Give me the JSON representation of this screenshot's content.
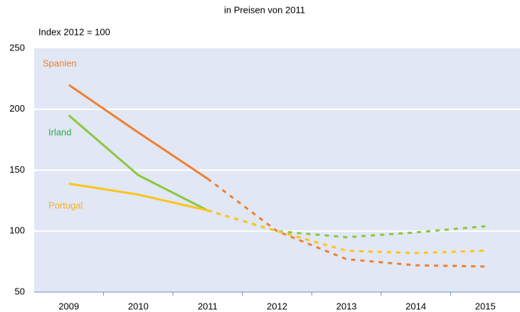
{
  "chart_data": {
    "type": "line",
    "title": "in Preisen von 2011",
    "y_axis_label": "Index 2012 = 100",
    "categories": [
      "2009",
      "2010",
      "2011",
      "2012",
      "2013",
      "2014",
      "2015"
    ],
    "series": [
      {
        "name": "Spanien",
        "color": "#f07f2e",
        "label_color": "#f07f2e",
        "dash_from": 2,
        "values": [
          220,
          181,
          143,
          100,
          77,
          72,
          71
        ]
      },
      {
        "name": "Irland",
        "color": "#8dc63f",
        "label_color": "#2fa84f",
        "dash_from": 2,
        "values": [
          195,
          146,
          117,
          100,
          95,
          99,
          104
        ]
      },
      {
        "name": "Portugal",
        "color": "#fcc419",
        "label_color": "#f6b025",
        "dash_from": 2,
        "values": [
          139,
          130,
          117,
          100,
          84,
          82,
          84
        ]
      }
    ],
    "ylim": [
      50,
      250
    ],
    "yticks": [
      50,
      100,
      150,
      200,
      250
    ],
    "grid": true,
    "plot_background": "#e1e7f4"
  }
}
